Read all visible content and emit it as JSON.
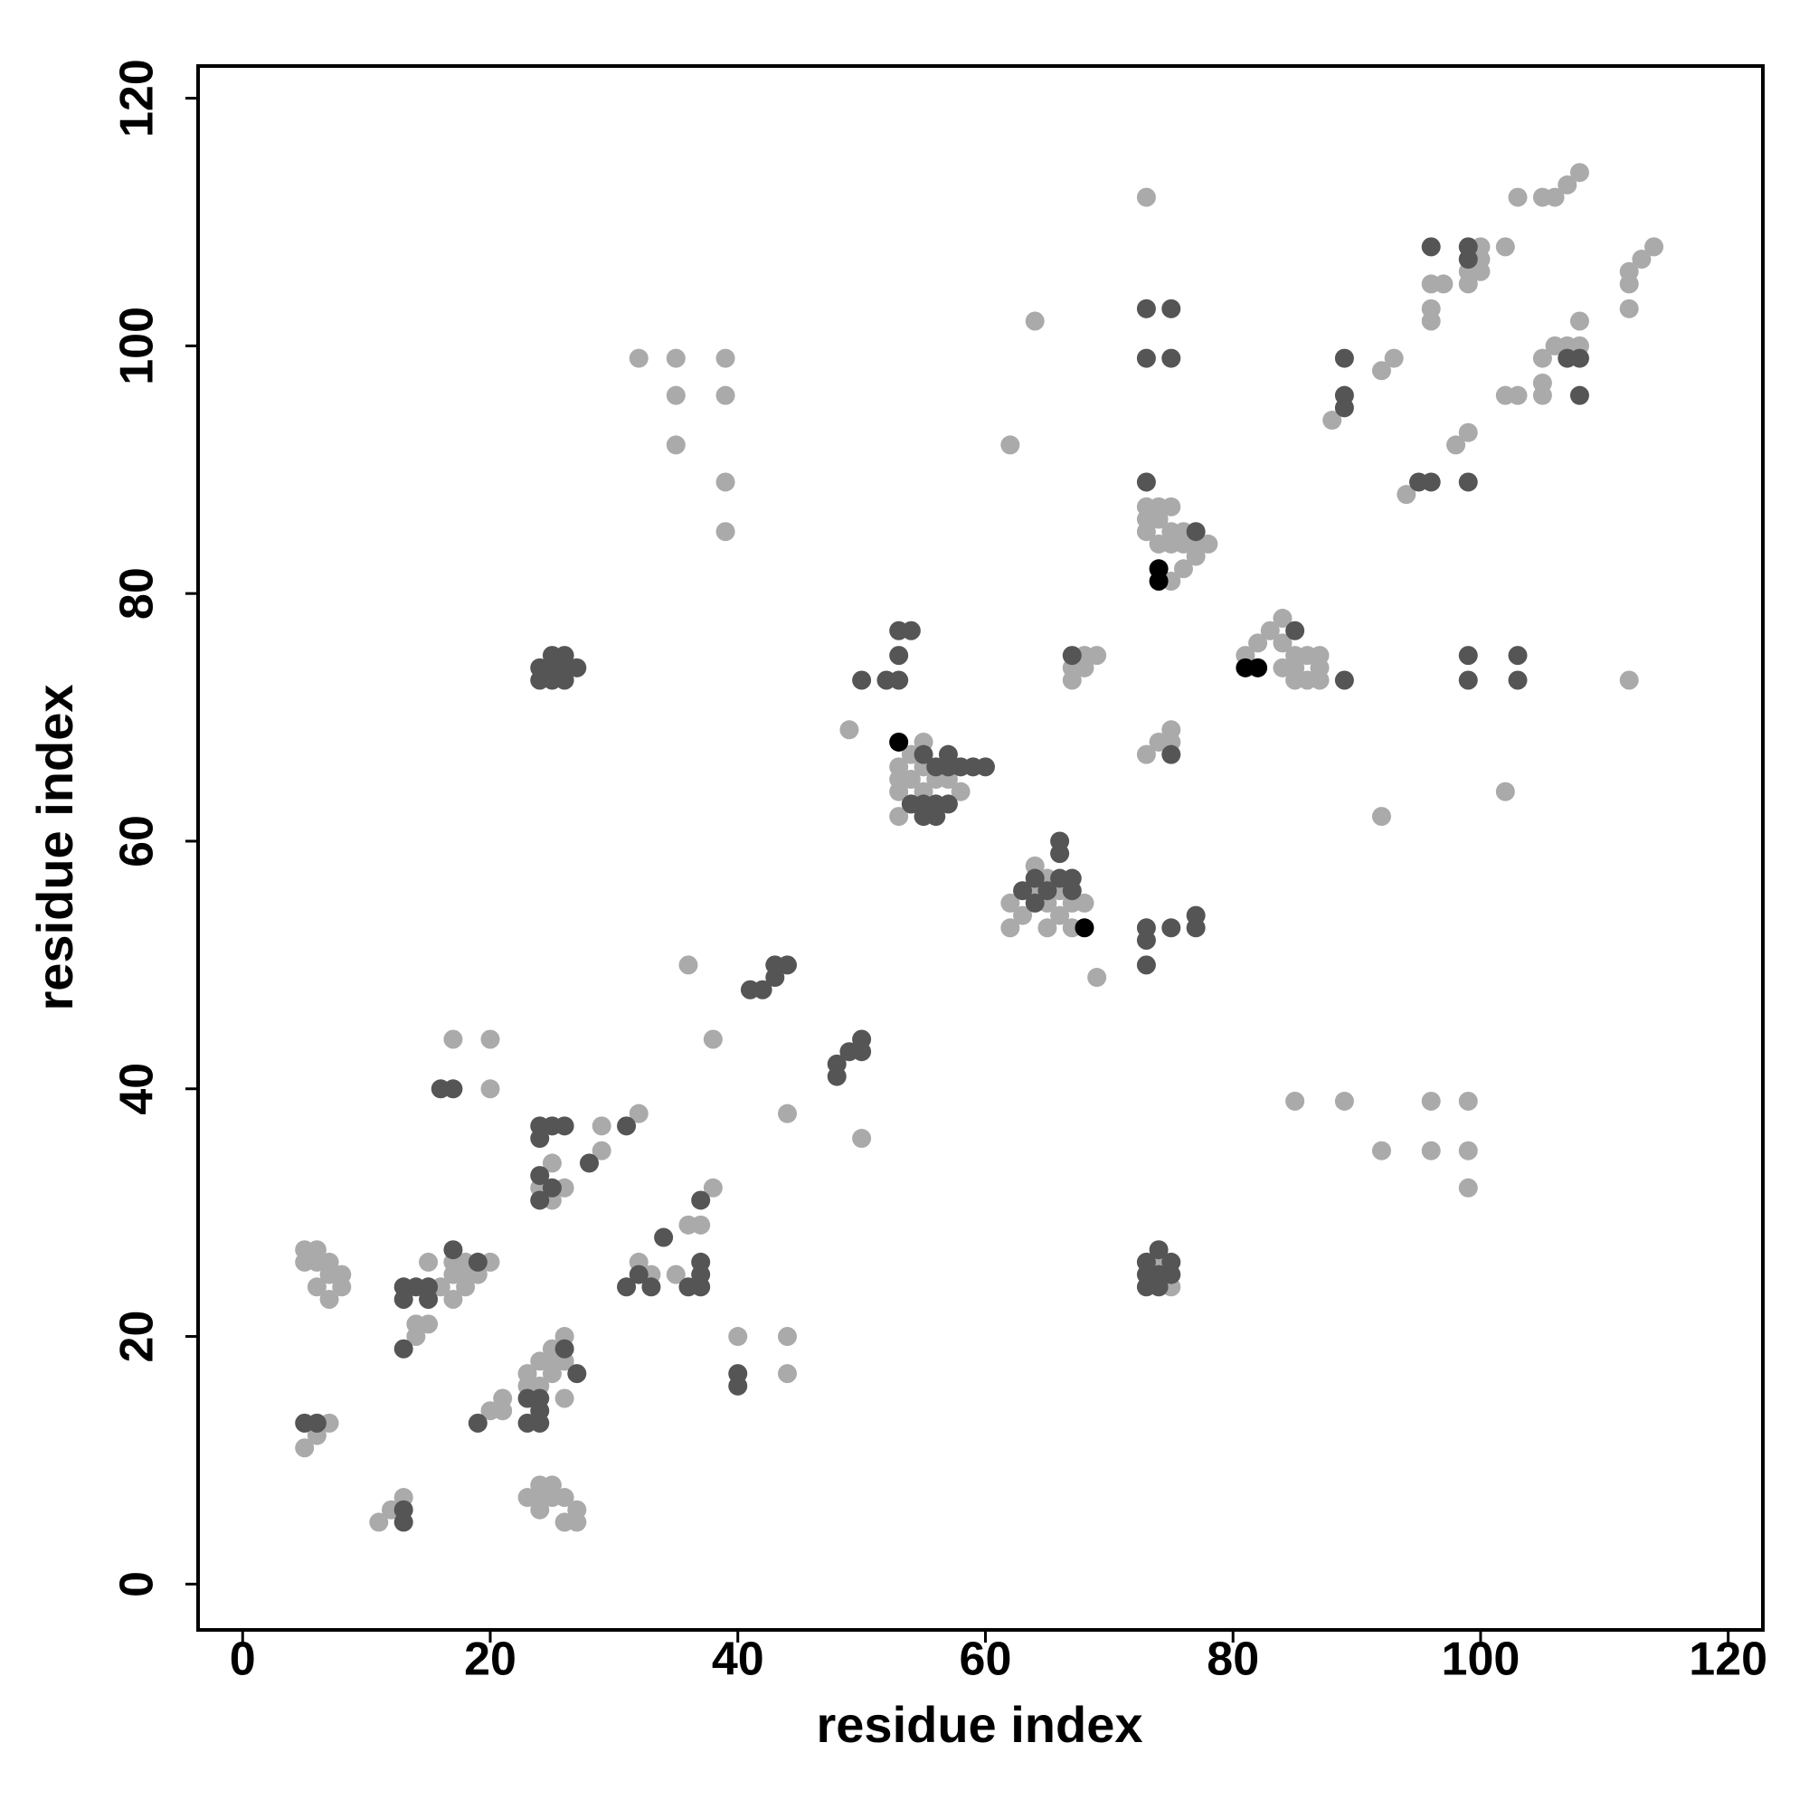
{
  "chart_data": {
    "type": "scatter",
    "xlabel": "residue index",
    "ylabel": "residue index",
    "xlim": [
      -3.6,
      122.8
    ],
    "ylim": [
      -3.7,
      122.6
    ],
    "xticks": [
      0,
      20,
      40,
      60,
      80,
      100,
      120
    ],
    "yticks": [
      0,
      20,
      40,
      60,
      80,
      100,
      120
    ],
    "series": [
      {
        "color": "#aaaaaa",
        "x": [
          5,
          6,
          7,
          11,
          12,
          13,
          23,
          24,
          24,
          25,
          25,
          26,
          26,
          27,
          27,
          24,
          5,
          5,
          6,
          6,
          7,
          6,
          7,
          7,
          8,
          8,
          14,
          14,
          15,
          15,
          16,
          17,
          17,
          17,
          18,
          18,
          18,
          19,
          20,
          20,
          21,
          21,
          23,
          24,
          24,
          25,
          25,
          25,
          26,
          26,
          26,
          23,
          25,
          25,
          26,
          24,
          29,
          29,
          32,
          32,
          33,
          35,
          36,
          37,
          38,
          38,
          36,
          40,
          44,
          44,
          44,
          50,
          49,
          17,
          20,
          20,
          32,
          35,
          35,
          35,
          39,
          39,
          39,
          39,
          62,
          64,
          73,
          53,
          53,
          53,
          53,
          54,
          54,
          55,
          55,
          55,
          56,
          57,
          58,
          54,
          62,
          62,
          63,
          64,
          64,
          65,
          65,
          66,
          66,
          67,
          67,
          68,
          65,
          69,
          67,
          67,
          68,
          68,
          69,
          73,
          74,
          75,
          75,
          73,
          73,
          73,
          74,
          74,
          74,
          75,
          75,
          75,
          75,
          76,
          76,
          77,
          77,
          78,
          76,
          75,
          74,
          81,
          82,
          83,
          84,
          84,
          84,
          85,
          85,
          86,
          86,
          87,
          87,
          85,
          87,
          85,
          89,
          92,
          96,
          96,
          99,
          99,
          99,
          88,
          92,
          93,
          94,
          98,
          99,
          92,
          102,
          112,
          96,
          96,
          96,
          97,
          99,
          99,
          100,
          100,
          100,
          102,
          103,
          105,
          106,
          107,
          108,
          102,
          103,
          105,
          105,
          105,
          106,
          107,
          108,
          108,
          112,
          112,
          112,
          113,
          114
        ],
        "values": [
          11,
          12,
          13,
          5,
          6,
          7,
          7,
          6,
          8,
          8,
          7,
          7,
          5,
          5,
          6,
          7,
          26,
          27,
          27,
          26,
          26,
          24,
          23,
          25,
          25,
          24,
          20,
          21,
          21,
          26,
          24,
          23,
          25,
          26,
          24,
          25,
          26,
          25,
          26,
          14,
          14,
          15,
          17,
          16,
          18,
          17,
          18,
          19,
          18,
          20,
          15,
          16,
          34,
          31,
          32,
          32,
          37,
          35,
          38,
          26,
          25,
          25,
          29,
          29,
          32,
          44,
          50,
          20,
          20,
          17,
          38,
          36,
          69,
          44,
          44,
          40,
          99,
          99,
          96,
          92,
          99,
          96,
          89,
          85,
          92,
          102,
          112,
          66,
          65,
          64,
          62,
          67,
          65,
          68,
          66,
          64,
          65,
          65,
          64,
          63,
          53,
          55,
          54,
          58,
          56,
          53,
          55,
          54,
          56,
          53,
          55,
          55,
          57,
          49,
          73,
          74,
          74,
          75,
          75,
          67,
          68,
          68,
          69,
          86,
          87,
          85,
          86,
          84,
          87,
          85,
          87,
          84,
          81,
          82,
          85,
          83,
          84,
          84,
          84,
          24,
          26,
          75,
          76,
          77,
          78,
          76,
          74,
          75,
          74,
          73,
          75,
          74,
          75,
          73,
          73,
          39,
          39,
          35,
          39,
          35,
          39,
          35,
          32,
          94,
          98,
          99,
          88,
          92,
          93,
          62,
          64,
          73,
          105,
          103,
          102,
          105,
          105,
          106,
          108,
          107,
          106,
          108,
          112,
          112,
          112,
          113,
          114,
          96,
          96,
          97,
          96,
          99,
          100,
          100,
          100,
          102,
          103,
          105,
          106,
          107,
          108
        ]
      },
      {
        "color": "#555555",
        "x": [
          5,
          6,
          13,
          13,
          13,
          13,
          13,
          14,
          15,
          15,
          17,
          19,
          19,
          16,
          17,
          23,
          23,
          24,
          24,
          24,
          26,
          27,
          24,
          24,
          25,
          26,
          24,
          24,
          25,
          28,
          31,
          31,
          32,
          33,
          34,
          36,
          37,
          37,
          37,
          37,
          40,
          40,
          41,
          42,
          43,
          43,
          44,
          48,
          48,
          49,
          50,
          50,
          24,
          24,
          25,
          25,
          26,
          26,
          26,
          27,
          25,
          50,
          52,
          53,
          53,
          53,
          54,
          55,
          56,
          56,
          56,
          55,
          55,
          57,
          57,
          57,
          58,
          59,
          60,
          54,
          63,
          64,
          64,
          65,
          66,
          66,
          66,
          67,
          67,
          73,
          73,
          73,
          75,
          77,
          77,
          67,
          73,
          73,
          75,
          75,
          73,
          75,
          77,
          73,
          73,
          73,
          74,
          74,
          74,
          75,
          75,
          85,
          89,
          89,
          89,
          89,
          95,
          96,
          99,
          99,
          99,
          103,
          103,
          96,
          99,
          99,
          107,
          108,
          108
        ],
        "values": [
          13,
          13,
          5,
          6,
          19,
          23,
          24,
          24,
          23,
          24,
          27,
          26,
          13,
          40,
          40,
          13,
          15,
          13,
          14,
          15,
          19,
          17,
          36,
          37,
          37,
          37,
          33,
          31,
          32,
          34,
          37,
          24,
          25,
          24,
          28,
          24,
          24,
          25,
          26,
          31,
          17,
          16,
          48,
          48,
          49,
          50,
          50,
          41,
          42,
          43,
          43,
          44,
          74,
          73,
          73,
          75,
          74,
          73,
          75,
          74,
          74,
          73,
          73,
          73,
          75,
          77,
          77,
          67,
          66,
          63,
          62,
          63,
          62,
          66,
          67,
          63,
          66,
          66,
          66,
          63,
          56,
          57,
          55,
          56,
          60,
          59,
          57,
          57,
          56,
          53,
          52,
          50,
          53,
          53,
          54,
          75,
          99,
          103,
          103,
          99,
          89,
          67,
          85,
          24,
          25,
          26,
          27,
          25,
          24,
          26,
          25,
          77,
          73,
          99,
          96,
          95,
          89,
          89,
          89,
          75,
          73,
          75,
          73,
          108,
          108,
          107,
          99,
          99,
          96
        ]
      },
      {
        "color": "#000000",
        "x": [
          53,
          68,
          74,
          74,
          81,
          82
        ],
        "values": [
          68,
          53,
          82,
          81,
          74,
          74
        ]
      }
    ]
  }
}
